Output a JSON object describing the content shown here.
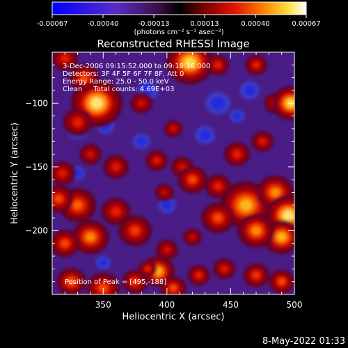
{
  "colorbar": {
    "ticks": [
      "-0.00067",
      "-0.00040",
      "-0.00013",
      "0.00013",
      "0.00040",
      "0.00067"
    ],
    "units_label": "(photons cm⁻² s⁻¹ asec⁻²)"
  },
  "chart_data": {
    "type": "heatmap",
    "title": "Reconstructed RHESSI Image",
    "xlabel": "Heliocentric X (arcsec)",
    "ylabel": "Heliocentric Y (arcsec)",
    "xlim": [
      310,
      500
    ],
    "ylim": [
      -250,
      -60
    ],
    "xticks": [
      350,
      400,
      450,
      500
    ],
    "yticks": [
      -100,
      -150,
      -200
    ],
    "color_range": [
      -0.00067,
      0.00067
    ],
    "annotations": [
      "3-Dec-2006 09:15:52.000 to 09:18:16.000",
      "Detectors: 3F 4F 5F 6F 7F 8F, Att 0",
      "Energy Range: 25.0 - 50.0 keV",
      "Clean     Total counts: 4.69E+03"
    ],
    "peak_label": "Position of Peak = [495,-188]",
    "peak": [
      495,
      -188
    ],
    "blobs": [
      {
        "x": 345,
        "y": -100,
        "r": 14,
        "v": 1.0
      },
      {
        "x": 335,
        "y": -80,
        "r": 8,
        "v": 0.6
      },
      {
        "x": 330,
        "y": -115,
        "r": 8,
        "v": 0.5
      },
      {
        "x": 320,
        "y": -65,
        "r": 7,
        "v": 0.5
      },
      {
        "x": 418,
        "y": -68,
        "r": 13,
        "v": 0.95
      },
      {
        "x": 440,
        "y": -70,
        "r": 6,
        "v": 0.5
      },
      {
        "x": 470,
        "y": -70,
        "r": 6,
        "v": 0.5
      },
      {
        "x": 485,
        "y": -100,
        "r": 6,
        "v": 0.45
      },
      {
        "x": 497,
        "y": -100,
        "r": 10,
        "v": 0.95
      },
      {
        "x": 380,
        "y": -100,
        "r": 6,
        "v": 0.4
      },
      {
        "x": 405,
        "y": -120,
        "r": 5,
        "v": 0.4
      },
      {
        "x": 455,
        "y": -140,
        "r": 7,
        "v": 0.5
      },
      {
        "x": 475,
        "y": -130,
        "r": 6,
        "v": 0.45
      },
      {
        "x": 392,
        "y": -145,
        "r": 6,
        "v": 0.45
      },
      {
        "x": 412,
        "y": -150,
        "r": 6,
        "v": 0.4
      },
      {
        "x": 360,
        "y": -150,
        "r": 7,
        "v": 0.45
      },
      {
        "x": 340,
        "y": -140,
        "r": 6,
        "v": 0.4
      },
      {
        "x": 318,
        "y": -155,
        "r": 7,
        "v": 0.45
      },
      {
        "x": 420,
        "y": -160,
        "r": 8,
        "v": 0.6
      },
      {
        "x": 440,
        "y": -165,
        "r": 7,
        "v": 0.5
      },
      {
        "x": 462,
        "y": -180,
        "r": 14,
        "v": 0.85
      },
      {
        "x": 485,
        "y": -170,
        "r": 10,
        "v": 0.75
      },
      {
        "x": 495,
        "y": -188,
        "r": 12,
        "v": 1.0
      },
      {
        "x": 490,
        "y": -205,
        "r": 10,
        "v": 0.85
      },
      {
        "x": 470,
        "y": -200,
        "r": 10,
        "v": 0.75
      },
      {
        "x": 440,
        "y": -190,
        "r": 9,
        "v": 0.6
      },
      {
        "x": 330,
        "y": -180,
        "r": 10,
        "v": 0.65
      },
      {
        "x": 315,
        "y": -175,
        "r": 8,
        "v": 0.6
      },
      {
        "x": 360,
        "y": -185,
        "r": 8,
        "v": 0.5
      },
      {
        "x": 375,
        "y": -200,
        "r": 9,
        "v": 0.55
      },
      {
        "x": 340,
        "y": -205,
        "r": 10,
        "v": 0.75
      },
      {
        "x": 320,
        "y": -210,
        "r": 8,
        "v": 0.6
      },
      {
        "x": 400,
        "y": -215,
        "r": 6,
        "v": 0.4
      },
      {
        "x": 420,
        "y": -205,
        "r": 5,
        "v": 0.35
      },
      {
        "x": 325,
        "y": -240,
        "r": 8,
        "v": 0.65
      },
      {
        "x": 350,
        "y": -245,
        "r": 9,
        "v": 0.6
      },
      {
        "x": 375,
        "y": -240,
        "r": 7,
        "v": 0.55
      },
      {
        "x": 393,
        "y": -232,
        "r": 9,
        "v": 0.85
      },
      {
        "x": 405,
        "y": -245,
        "r": 7,
        "v": 0.6
      },
      {
        "x": 425,
        "y": -235,
        "r": 6,
        "v": 0.5
      },
      {
        "x": 445,
        "y": -230,
        "r": 6,
        "v": 0.45
      },
      {
        "x": 470,
        "y": -235,
        "r": 7,
        "v": 0.55
      },
      {
        "x": 490,
        "y": -240,
        "r": 7,
        "v": 0.6
      },
      {
        "x": 385,
        "y": -230,
        "r": 5,
        "v": 0.5
      },
      {
        "x": 398,
        "y": -170,
        "r": 5,
        "v": 0.35
      }
    ],
    "negative_blobs": [
      {
        "x": 330,
        "y": -120,
        "r": 9,
        "v": -0.6
      },
      {
        "x": 352,
        "y": -118,
        "r": 7,
        "v": -0.55
      },
      {
        "x": 385,
        "y": -90,
        "r": 8,
        "v": -0.5
      },
      {
        "x": 440,
        "y": -100,
        "r": 10,
        "v": -0.55
      },
      {
        "x": 465,
        "y": -90,
        "r": 8,
        "v": -0.5
      },
      {
        "x": 455,
        "y": -110,
        "r": 6,
        "v": -0.45
      },
      {
        "x": 380,
        "y": -130,
        "r": 7,
        "v": -0.45
      },
      {
        "x": 430,
        "y": -125,
        "r": 8,
        "v": -0.45
      },
      {
        "x": 330,
        "y": -155,
        "r": 6,
        "v": -0.4
      },
      {
        "x": 400,
        "y": -180,
        "r": 7,
        "v": -0.4
      },
      {
        "x": 350,
        "y": -225,
        "r": 6,
        "v": -0.35
      }
    ]
  },
  "timestamp": "8-May-2022 01:33"
}
